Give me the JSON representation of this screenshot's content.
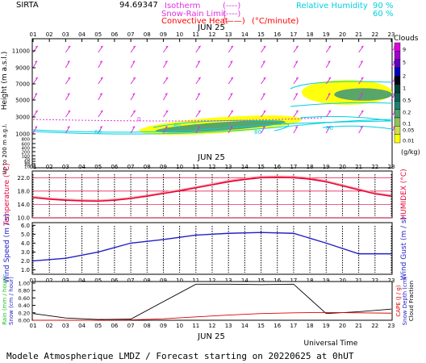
{
  "header": {
    "station": "SIRTA",
    "coords": "94.69347",
    "legend": [
      {
        "label": "Isotherm",
        "sample": "(----)",
        "color": "#e030e0"
      },
      {
        "label": "Snow-Rain Limit",
        "sample": "(----)",
        "color": "#e030e0"
      },
      {
        "label": "Convective Heat",
        "sample": "(——)",
        "unit": "(°C/minute)",
        "color": "#ff0000"
      }
    ],
    "rh": {
      "label": "Relative Humidity",
      "v1": "90 %",
      "v2": "60 %",
      "color": "#00d0e0"
    }
  },
  "footer": {
    "universal_time": "Universal Time",
    "model": "Modele Atmospherique LMDZ / Forecast starting on 20220625 at 0hUT"
  },
  "colors": {
    "cloud_scale": [
      "#ffff00",
      "#c8e050",
      "#90c060",
      "#50a070",
      "#208070",
      "#106058",
      "#084038",
      "#000010",
      "#0000c0",
      "#6000c0",
      "#a000d0",
      "#e000e0"
    ],
    "temperature": "#e8003c",
    "humidex": "#ffa0a0",
    "wind": "#2020c8",
    "rain": "#000000",
    "capc": "#e00000",
    "arrows": "#e030e0",
    "rh_lines": "#00d0e0"
  },
  "chart_data": [
    {
      "type": "heatmap",
      "name": "clouds",
      "date_label": "JUN 25",
      "x_ticks": [
        "01",
        "02",
        "03",
        "04",
        "05",
        "06",
        "07",
        "08",
        "09",
        "10",
        "11",
        "12",
        "13",
        "14",
        "15",
        "16",
        "17",
        "18",
        "19",
        "20",
        "21",
        "22",
        "23"
      ],
      "y_ticks": [
        "11000",
        "9000",
        "7000",
        "5000",
        "3000",
        "1000",
        "800",
        "600",
        "400",
        "200",
        "100",
        "70",
        "50",
        "30",
        "10"
      ],
      "ylabel": "Height  (m a.s.l.)",
      "ylabel2": "Up to 200 m a.g.l.",
      "colorbar_title": "Clouds",
      "colorbar_ticks": [
        "9",
        "5",
        "2",
        "1",
        "0.5",
        "0.2",
        "0.1",
        "0.05",
        "0.01"
      ],
      "colorbar_unit": "(g/kg)",
      "rh_labels": [
        "60",
        "80",
        "80",
        "80"
      ],
      "isotherm_label": "0",
      "regions": [
        {
          "x": [
            7.5,
            17.5
          ],
          "y": [
            1100,
            3000
          ],
          "level": "0.05"
        },
        {
          "x": [
            8.5,
            16.5
          ],
          "y": [
            1400,
            2400
          ],
          "level": "0.5"
        },
        {
          "x": [
            17.5,
            23
          ],
          "y": [
            4500,
            7500
          ],
          "level": "0.05"
        },
        {
          "x": [
            19.5,
            23
          ],
          "y": [
            5000,
            6500
          ],
          "level": "0.5"
        }
      ]
    },
    {
      "type": "line",
      "name": "temperature",
      "date_label": "JUN 25",
      "ylabel": "Temperature (°C)",
      "ylabel2": "HUMIDEX (°C)",
      "y_ticks": [
        "22.0",
        "18.0",
        "14.0",
        "10.0"
      ],
      "ylim": [
        10,
        24
      ],
      "x": [
        1,
        2,
        3,
        4,
        5,
        6,
        7,
        8,
        9,
        10,
        11,
        12,
        13,
        14,
        15,
        16,
        17,
        18,
        19,
        20,
        21,
        22,
        23
      ],
      "series": [
        {
          "name": "Temperature",
          "values": [
            16.1,
            15.6,
            15.3,
            15.1,
            15.0,
            15.3,
            15.8,
            16.5,
            17.3,
            18.1,
            19.0,
            19.9,
            20.8,
            21.5,
            22.0,
            22.1,
            22.0,
            21.6,
            20.8,
            19.6,
            18.4,
            17.2,
            16.5
          ]
        },
        {
          "name": "HUMIDEX",
          "values": [
            16.4,
            15.9,
            15.6,
            15.4,
            15.3,
            15.6,
            16.1,
            16.8,
            17.6,
            18.4,
            19.3,
            20.2,
            21.2,
            21.9,
            22.4,
            22.5,
            22.4,
            22.0,
            21.1,
            19.9,
            18.7,
            17.5,
            16.8
          ]
        }
      ]
    },
    {
      "type": "line",
      "name": "wind",
      "ylabel": "Wind Speed (m / s)",
      "ylabel2": "Wind Gust (m / s)",
      "y_ticks": [
        "6.0",
        "5.0",
        "4.0",
        "3.0",
        "2.0",
        "1.0"
      ],
      "ylim": [
        1,
        6
      ],
      "x": [
        1,
        3,
        5,
        7,
        9,
        11,
        13,
        15,
        17,
        19,
        21,
        23
      ],
      "series": [
        {
          "name": "Wind Speed",
          "values": [
            2.0,
            2.3,
            3.0,
            4.0,
            4.4,
            4.9,
            5.1,
            5.2,
            5.1,
            4.0,
            2.8,
            2.8
          ]
        }
      ]
    },
    {
      "type": "line",
      "name": "precipitation",
      "date_label": "JUN 25",
      "ylabel": "Rain (mm / hour)",
      "ylabel_b": "Snow (cm / hour)",
      "ylabel2": "CAPE (J / g)",
      "ylabel2_b": "Snow Depth (cm)",
      "ylabel2_c": "Cloud Fraction",
      "y_ticks": [
        "1.00",
        "0.80",
        "0.60",
        "0.40",
        "0.20",
        "0.00"
      ],
      "ylim": [
        0,
        1
      ],
      "x_ticks": [
        "01",
        "02",
        "03",
        "04",
        "05",
        "06",
        "07",
        "08",
        "09",
        "10",
        "11",
        "12",
        "13",
        "14",
        "15",
        "16",
        "17",
        "18",
        "19",
        "20",
        "21",
        "22",
        "23"
      ],
      "series": [
        {
          "name": "Cloud Fraction",
          "x": [
            1,
            3,
            5,
            7,
            11,
            13,
            15,
            17,
            19,
            21,
            23
          ],
          "values": [
            0.18,
            0.06,
            0.02,
            0.03,
            0.97,
            0.97,
            0.96,
            0.97,
            0.18,
            0.23,
            0.3
          ]
        },
        {
          "name": "CAPE",
          "x": [
            1,
            5,
            7,
            9,
            11,
            13,
            15,
            17,
            19,
            21,
            23
          ],
          "values": [
            0.0,
            0.0,
            0.01,
            0.04,
            0.09,
            0.14,
            0.18,
            0.2,
            0.21,
            0.2,
            0.19
          ]
        }
      ]
    }
  ]
}
